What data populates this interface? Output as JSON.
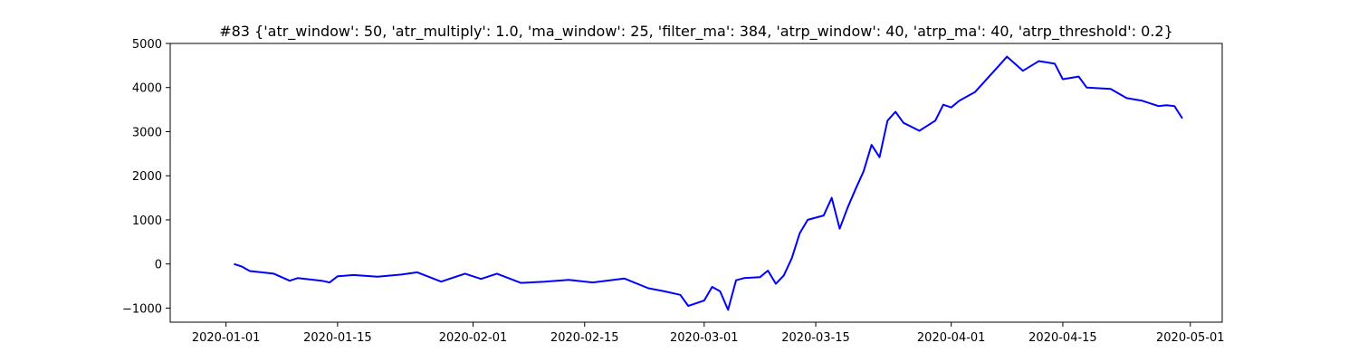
{
  "chart_data": {
    "type": "line",
    "title": "#83 {'atr_window': 50, 'atr_multiply': 1.0, 'ma_window': 25, 'filter_ma': 384, 'atrp_window': 40, 'atrp_ma': 40, 'atrp_threshold': 0.2}",
    "xlabel": "",
    "ylabel": "",
    "grid": false,
    "legend": "none",
    "xlim": [
      "2019-12-25",
      "2020-05-05"
    ],
    "ylim": [
      -1320,
      5000
    ],
    "x_ticks": [
      "2020-01-01",
      "2020-01-15",
      "2020-02-01",
      "2020-02-15",
      "2020-03-01",
      "2020-03-15",
      "2020-04-01",
      "2020-04-15",
      "2020-05-01"
    ],
    "y_ticks": [
      -1000,
      0,
      1000,
      2000,
      3000,
      4000,
      5000
    ],
    "series": [
      {
        "color": "#0000ff",
        "x": [
          "2020-01-02",
          "2020-01-03",
          "2020-01-04",
          "2020-01-07",
          "2020-01-08",
          "2020-01-09",
          "2020-01-10",
          "2020-01-13",
          "2020-01-14",
          "2020-01-15",
          "2020-01-17",
          "2020-01-20",
          "2020-01-23",
          "2020-01-25",
          "2020-01-28",
          "2020-01-31",
          "2020-02-02",
          "2020-02-04",
          "2020-02-07",
          "2020-02-10",
          "2020-02-13",
          "2020-02-16",
          "2020-02-20",
          "2020-02-23",
          "2020-02-25",
          "2020-02-27",
          "2020-02-28",
          "2020-03-01",
          "2020-03-02",
          "2020-03-03",
          "2020-03-04",
          "2020-03-05",
          "2020-03-06",
          "2020-03-08",
          "2020-03-09",
          "2020-03-10",
          "2020-03-11",
          "2020-03-12",
          "2020-03-13",
          "2020-03-14",
          "2020-03-16",
          "2020-03-17",
          "2020-03-18",
          "2020-03-19",
          "2020-03-20",
          "2020-03-21",
          "2020-03-22",
          "2020-03-23",
          "2020-03-24",
          "2020-03-25",
          "2020-03-26",
          "2020-03-28",
          "2020-03-30",
          "2020-03-31",
          "2020-04-01",
          "2020-04-02",
          "2020-04-04",
          "2020-04-07",
          "2020-04-08",
          "2020-04-10",
          "2020-04-12",
          "2020-04-14",
          "2020-04-15",
          "2020-04-17",
          "2020-04-18",
          "2020-04-21",
          "2020-04-23",
          "2020-04-25",
          "2020-04-27",
          "2020-04-28",
          "2020-04-29",
          "2020-04-30"
        ],
        "y": [
          0,
          -60,
          -160,
          -220,
          -300,
          -380,
          -320,
          -380,
          -420,
          -280,
          -250,
          -290,
          -240,
          -190,
          -400,
          -220,
          -340,
          -220,
          -430,
          -400,
          -360,
          -420,
          -330,
          -550,
          -620,
          -700,
          -950,
          -830,
          -520,
          -620,
          -1040,
          -370,
          -320,
          -300,
          -150,
          -450,
          -260,
          130,
          700,
          1000,
          1100,
          1500,
          800,
          1280,
          1700,
          2100,
          2700,
          2420,
          3250,
          3450,
          3200,
          3020,
          3250,
          3610,
          3550,
          3700,
          3900,
          4500,
          4700,
          4380,
          4600,
          4540,
          4190,
          4250,
          4000,
          3970,
          3760,
          3700,
          3580,
          3600,
          3580,
          3300
        ]
      }
    ]
  }
}
